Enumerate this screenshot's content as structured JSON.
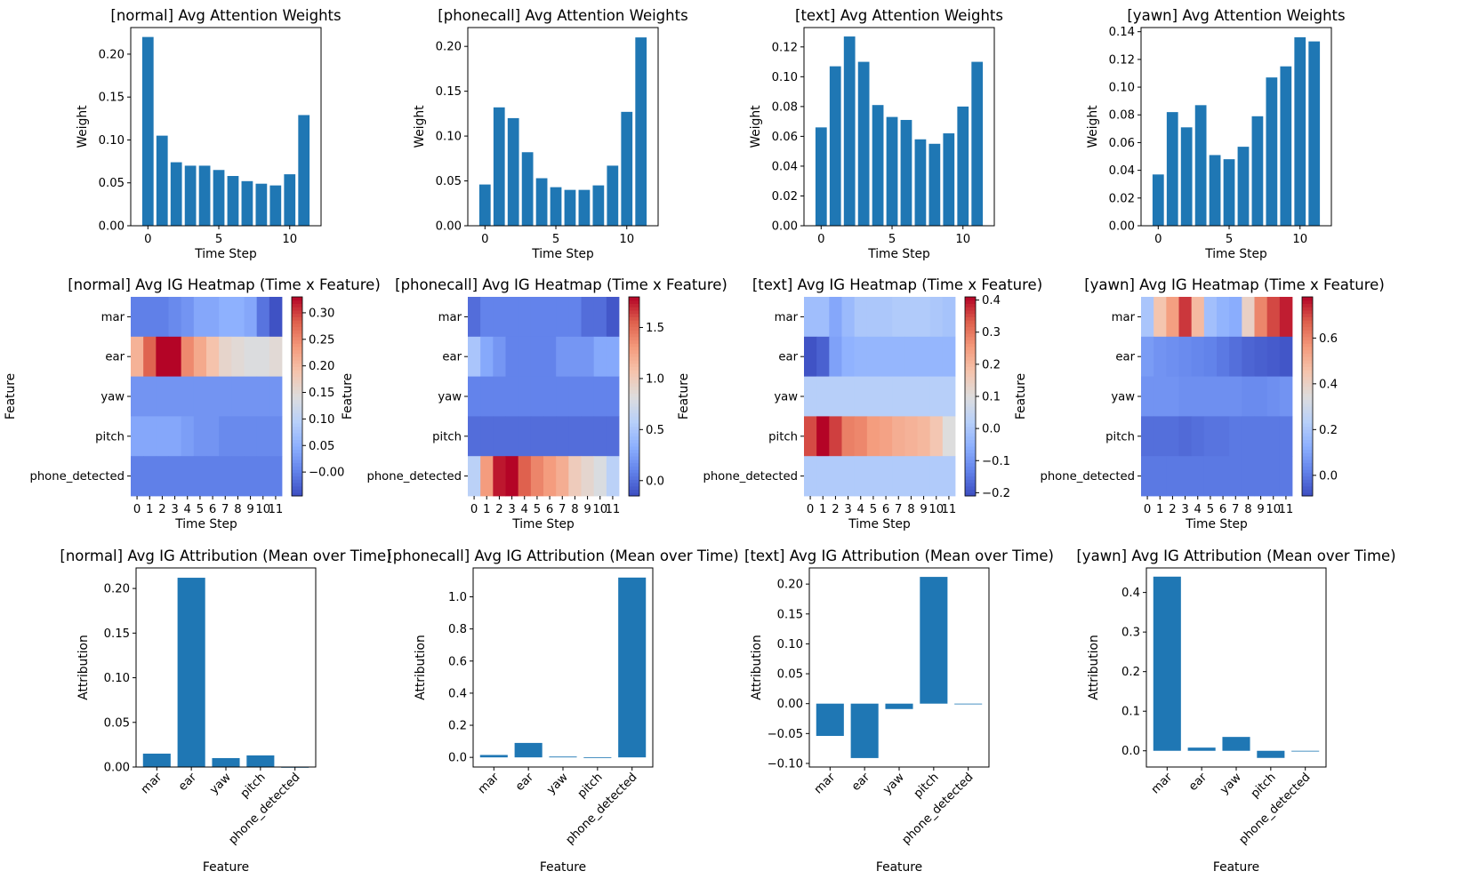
{
  "figure": {
    "attention": [
      {
        "category": "normal",
        "chart_data": {
          "type": "bar",
          "title": "[normal] Avg Attention Weights",
          "xlabel": "Time Step",
          "ylabel": "Weight",
          "categories": [
            0,
            1,
            2,
            3,
            4,
            5,
            6,
            7,
            8,
            9,
            10,
            11
          ],
          "values": [
            0.22,
            0.105,
            0.074,
            0.07,
            0.07,
            0.065,
            0.058,
            0.052,
            0.049,
            0.047,
            0.06,
            0.129
          ],
          "ylim": [
            0,
            0.231
          ],
          "yticks": [
            0,
            0.05,
            0.1,
            0.15,
            0.2
          ],
          "ytick_labels": [
            "0.00",
            "0.05",
            "0.10",
            "0.15",
            "0.20"
          ],
          "xticks": [
            0,
            5,
            10
          ],
          "xtick_labels": [
            "0",
            "5",
            "10"
          ],
          "grid": false
        }
      },
      {
        "category": "phonecall",
        "chart_data": {
          "type": "bar",
          "title": "[phonecall] Avg Attention Weights",
          "xlabel": "Time Step",
          "ylabel": "Weight",
          "categories": [
            0,
            1,
            2,
            3,
            4,
            5,
            6,
            7,
            8,
            9,
            10,
            11
          ],
          "values": [
            0.046,
            0.132,
            0.12,
            0.082,
            0.053,
            0.043,
            0.04,
            0.04,
            0.045,
            0.067,
            0.127,
            0.21
          ],
          "ylim": [
            0,
            0.221
          ],
          "yticks": [
            0,
            0.05,
            0.1,
            0.15,
            0.2
          ],
          "ytick_labels": [
            "0.00",
            "0.05",
            "0.10",
            "0.15",
            "0.20"
          ],
          "xticks": [
            0,
            5,
            10
          ],
          "xtick_labels": [
            "0",
            "5",
            "10"
          ],
          "grid": false
        }
      },
      {
        "category": "text",
        "chart_data": {
          "type": "bar",
          "title": "[text] Avg Attention Weights",
          "xlabel": "Time Step",
          "ylabel": "Weight",
          "categories": [
            0,
            1,
            2,
            3,
            4,
            5,
            6,
            7,
            8,
            9,
            10,
            11
          ],
          "values": [
            0.066,
            0.107,
            0.127,
            0.11,
            0.081,
            0.073,
            0.071,
            0.058,
            0.055,
            0.062,
            0.08,
            0.11
          ],
          "ylim": [
            0,
            0.133
          ],
          "yticks": [
            0,
            0.02,
            0.04,
            0.06,
            0.08,
            0.1,
            0.12
          ],
          "ytick_labels": [
            "0.00",
            "0.02",
            "0.04",
            "0.06",
            "0.08",
            "0.10",
            "0.12"
          ],
          "xticks": [
            0,
            5,
            10
          ],
          "xtick_labels": [
            "0",
            "5",
            "10"
          ],
          "grid": false
        }
      },
      {
        "category": "yawn",
        "chart_data": {
          "type": "bar",
          "title": "[yawn] Avg Attention Weights",
          "xlabel": "Time Step",
          "ylabel": "Weight",
          "categories": [
            0,
            1,
            2,
            3,
            4,
            5,
            6,
            7,
            8,
            9,
            10,
            11
          ],
          "values": [
            0.037,
            0.082,
            0.071,
            0.087,
            0.051,
            0.048,
            0.057,
            0.079,
            0.107,
            0.115,
            0.136,
            0.133
          ],
          "ylim": [
            0,
            0.143
          ],
          "yticks": [
            0,
            0.02,
            0.04,
            0.06,
            0.08,
            0.1,
            0.12,
            0.14
          ],
          "ytick_labels": [
            "0.00",
            "0.02",
            "0.04",
            "0.06",
            "0.08",
            "0.10",
            "0.12",
            "0.14"
          ],
          "xticks": [
            0,
            5,
            10
          ],
          "xtick_labels": [
            "0",
            "5",
            "10"
          ],
          "grid": false
        }
      }
    ],
    "heatmaps": [
      {
        "category": "normal",
        "chart_data": {
          "type": "heatmap",
          "title": "[normal] Avg IG Heatmap (Time x Feature)",
          "xlabel": "Time Step",
          "ylabel": "Feature",
          "x": [
            "0",
            "1",
            "2",
            "3",
            "4",
            "5",
            "6",
            "7",
            "8",
            "9",
            "10",
            "11"
          ],
          "y": [
            "mar",
            "ear",
            "yaw",
            "pitch",
            "phone_detected"
          ],
          "values": [
            [
              0.0,
              0.0,
              0.0,
              0.01,
              0.02,
              0.04,
              0.04,
              0.05,
              0.05,
              0.04,
              -0.01,
              -0.04
            ],
            [
              0.21,
              0.28,
              0.33,
              0.33,
              0.25,
              0.22,
              0.19,
              0.16,
              0.15,
              0.14,
              0.14,
              0.15
            ],
            [
              0.02,
              0.02,
              0.02,
              0.02,
              0.02,
              0.02,
              0.02,
              0.02,
              0.02,
              0.02,
              0.02,
              0.02
            ],
            [
              0.04,
              0.04,
              0.04,
              0.04,
              0.03,
              0.02,
              0.02,
              0.01,
              0.01,
              0.01,
              0.01,
              0.01
            ],
            [
              0.0,
              0.0,
              0.0,
              0.0,
              0.0,
              0.0,
              0.0,
              0.0,
              0.0,
              0.0,
              0.0,
              0.0
            ]
          ],
          "colormap": "coolwarm",
          "vmin": -0.045,
          "vmax": 0.33,
          "colorbar_ticks": [
            -0.0,
            0.05,
            0.1,
            0.15,
            0.2,
            0.25,
            0.3
          ],
          "colorbar_labels": [
            "−0.00",
            "0.05",
            "0.10",
            "0.15",
            "0.20",
            "0.25",
            "0.30"
          ]
        }
      },
      {
        "category": "phonecall",
        "chart_data": {
          "type": "heatmap",
          "title": "[phonecall] Avg IG Heatmap (Time x Feature)",
          "xlabel": "Time Step",
          "ylabel": "Feature",
          "x": [
            "0",
            "1",
            "2",
            "3",
            "4",
            "5",
            "6",
            "7",
            "8",
            "9",
            "10",
            "11"
          ],
          "y": [
            "mar",
            "ear",
            "yaw",
            "pitch",
            "phone_detected"
          ],
          "values": [
            [
              0.0,
              0.1,
              0.1,
              0.1,
              0.1,
              0.1,
              0.1,
              0.1,
              0.1,
              0.0,
              0.0,
              -0.1
            ],
            [
              0.5,
              0.3,
              0.2,
              0.1,
              0.1,
              0.1,
              0.1,
              0.2,
              0.2,
              0.2,
              0.3,
              0.3
            ],
            [
              0.1,
              0.1,
              0.1,
              0.1,
              0.1,
              0.1,
              0.1,
              0.1,
              0.1,
              0.1,
              0.1,
              0.1
            ],
            [
              0.0,
              0.0,
              0.0,
              0.0,
              0.0,
              0.0,
              0.0,
              0.0,
              0.0,
              0.0,
              0.0,
              0.0
            ],
            [
              0.6,
              1.3,
              1.75,
              1.8,
              1.55,
              1.4,
              1.3,
              1.2,
              1.0,
              0.9,
              0.8,
              0.6
            ]
          ],
          "colormap": "coolwarm",
          "vmin": -0.15,
          "vmax": 1.8,
          "colorbar_ticks": [
            0.0,
            0.5,
            1.0,
            1.5
          ],
          "colorbar_labels": [
            "0.0",
            "0.5",
            "1.0",
            "1.5"
          ]
        }
      },
      {
        "category": "text",
        "chart_data": {
          "type": "heatmap",
          "title": "[text] Avg IG Heatmap (Time x Feature)",
          "xlabel": "Time Step",
          "ylabel": "Feature",
          "x": [
            "0",
            "1",
            "2",
            "3",
            "4",
            "5",
            "6",
            "7",
            "8",
            "9",
            "10",
            "11"
          ],
          "y": [
            "mar",
            "ear",
            "yaw",
            "pitch",
            "phone_detected"
          ],
          "values": [
            [
              -0.02,
              -0.02,
              -0.07,
              -0.03,
              0.0,
              0.0,
              0.0,
              0.01,
              0.01,
              0.01,
              0.0,
              -0.01
            ],
            [
              -0.2,
              -0.18,
              -0.08,
              -0.05,
              -0.04,
              -0.04,
              -0.04,
              -0.04,
              -0.04,
              -0.04,
              -0.04,
              -0.04
            ],
            [
              0.02,
              0.02,
              0.02,
              0.02,
              0.02,
              0.02,
              0.02,
              0.02,
              0.02,
              0.02,
              0.02,
              0.02
            ],
            [
              0.35,
              0.42,
              0.36,
              0.29,
              0.28,
              0.25,
              0.24,
              0.22,
              0.21,
              0.2,
              0.17,
              0.1
            ],
            [
              0.01,
              0.01,
              0.01,
              0.01,
              0.01,
              0.01,
              0.01,
              0.01,
              0.01,
              0.01,
              0.01,
              0.01
            ]
          ],
          "colormap": "coolwarm",
          "vmin": -0.21,
          "vmax": 0.41,
          "colorbar_ticks": [
            -0.2,
            -0.1,
            0.0,
            0.1,
            0.2,
            0.3,
            0.4
          ],
          "colorbar_labels": [
            "−0.2",
            "−0.1",
            "0.0",
            "0.1",
            "0.2",
            "0.3",
            "0.4"
          ]
        }
      },
      {
        "category": "yawn",
        "chart_data": {
          "type": "heatmap",
          "title": "[yawn] Avg IG Heatmap (Time x Feature)",
          "xlabel": "Time Step",
          "ylabel": "Feature",
          "x": [
            "0",
            "1",
            "2",
            "3",
            "4",
            "5",
            "6",
            "7",
            "8",
            "9",
            "10",
            "11"
          ],
          "y": [
            "mar",
            "ear",
            "yaw",
            "pitch",
            "phone_detected"
          ],
          "values": [
            [
              0.2,
              0.45,
              0.55,
              0.72,
              0.48,
              0.18,
              0.14,
              0.12,
              0.4,
              0.6,
              0.7,
              0.75
            ],
            [
              0.08,
              0.06,
              0.05,
              0.04,
              0.03,
              0.02,
              0.0,
              -0.02,
              -0.04,
              -0.05,
              -0.06,
              -0.07
            ],
            [
              0.06,
              0.06,
              0.06,
              0.05,
              0.05,
              0.05,
              0.05,
              0.05,
              0.04,
              0.04,
              0.05,
              0.06
            ],
            [
              -0.02,
              -0.02,
              -0.02,
              -0.03,
              -0.02,
              -0.01,
              -0.01,
              0.0,
              0.0,
              0.0,
              0.0,
              0.0
            ],
            [
              0.0,
              0.0,
              0.0,
              0.0,
              0.0,
              0.0,
              0.0,
              0.0,
              0.0,
              0.0,
              0.0,
              0.0
            ]
          ],
          "colormap": "coolwarm",
          "vmin": -0.09,
          "vmax": 0.78,
          "colorbar_ticks": [
            0.0,
            0.2,
            0.4,
            0.6
          ],
          "colorbar_labels": [
            "0.0",
            "0.2",
            "0.4",
            "0.6"
          ]
        }
      }
    ],
    "attributions": [
      {
        "category": "normal",
        "chart_data": {
          "type": "bar",
          "title": "[normal] Avg IG Attribution (Mean over Time)",
          "xlabel": "Feature",
          "ylabel": "Attribution",
          "categories": [
            "mar",
            "ear",
            "yaw",
            "pitch",
            "phone_detected"
          ],
          "values": [
            0.015,
            0.212,
            0.01,
            0.013,
            0.0
          ],
          "ylim": [
            0,
            0.223
          ],
          "yticks": [
            0,
            0.05,
            0.1,
            0.15,
            0.2
          ],
          "ytick_labels": [
            "0.00",
            "0.05",
            "0.10",
            "0.15",
            "0.20"
          ]
        }
      },
      {
        "category": "phonecall",
        "chart_data": {
          "type": "bar",
          "title": "[phonecall] Avg IG Attribution (Mean over Time)",
          "xlabel": "Feature",
          "ylabel": "Attribution",
          "categories": [
            "mar",
            "ear",
            "yaw",
            "pitch",
            "phone_detected"
          ],
          "values": [
            0.015,
            0.09,
            0.005,
            -0.003,
            1.12
          ],
          "ylim": [
            -0.06,
            1.18
          ],
          "yticks": [
            0,
            0.2,
            0.4,
            0.6,
            0.8,
            1.0
          ],
          "ytick_labels": [
            "0.0",
            "0.2",
            "0.4",
            "0.6",
            "0.8",
            "1.0"
          ]
        }
      },
      {
        "category": "text",
        "chart_data": {
          "type": "bar",
          "title": "[text] Avg IG Attribution (Mean over Time)",
          "xlabel": "Feature",
          "ylabel": "Attribution",
          "categories": [
            "mar",
            "ear",
            "yaw",
            "pitch",
            "phone_detected"
          ],
          "values": [
            -0.054,
            -0.091,
            -0.009,
            0.212,
            0.0
          ],
          "ylim": [
            -0.106,
            0.227
          ],
          "yticks": [
            -0.1,
            -0.05,
            0,
            0.05,
            0.1,
            0.15,
            0.2
          ],
          "ytick_labels": [
            "−0.10",
            "−0.05",
            "0.00",
            "0.05",
            "0.10",
            "0.15",
            "0.20"
          ]
        }
      },
      {
        "category": "yawn",
        "chart_data": {
          "type": "bar",
          "title": "[yawn] Avg IG Attribution (Mean over Time)",
          "xlabel": "Feature",
          "ylabel": "Attribution",
          "categories": [
            "mar",
            "ear",
            "yaw",
            "pitch",
            "phone_detected"
          ],
          "values": [
            0.44,
            0.008,
            0.035,
            -0.018,
            0.0
          ],
          "ylim": [
            -0.041,
            0.462
          ],
          "yticks": [
            0,
            0.1,
            0.2,
            0.3,
            0.4
          ],
          "ytick_labels": [
            "0.0",
            "0.1",
            "0.2",
            "0.3",
            "0.4"
          ]
        }
      }
    ],
    "colors": {
      "bar": "#1f77b4",
      "axis": "#000000"
    }
  }
}
